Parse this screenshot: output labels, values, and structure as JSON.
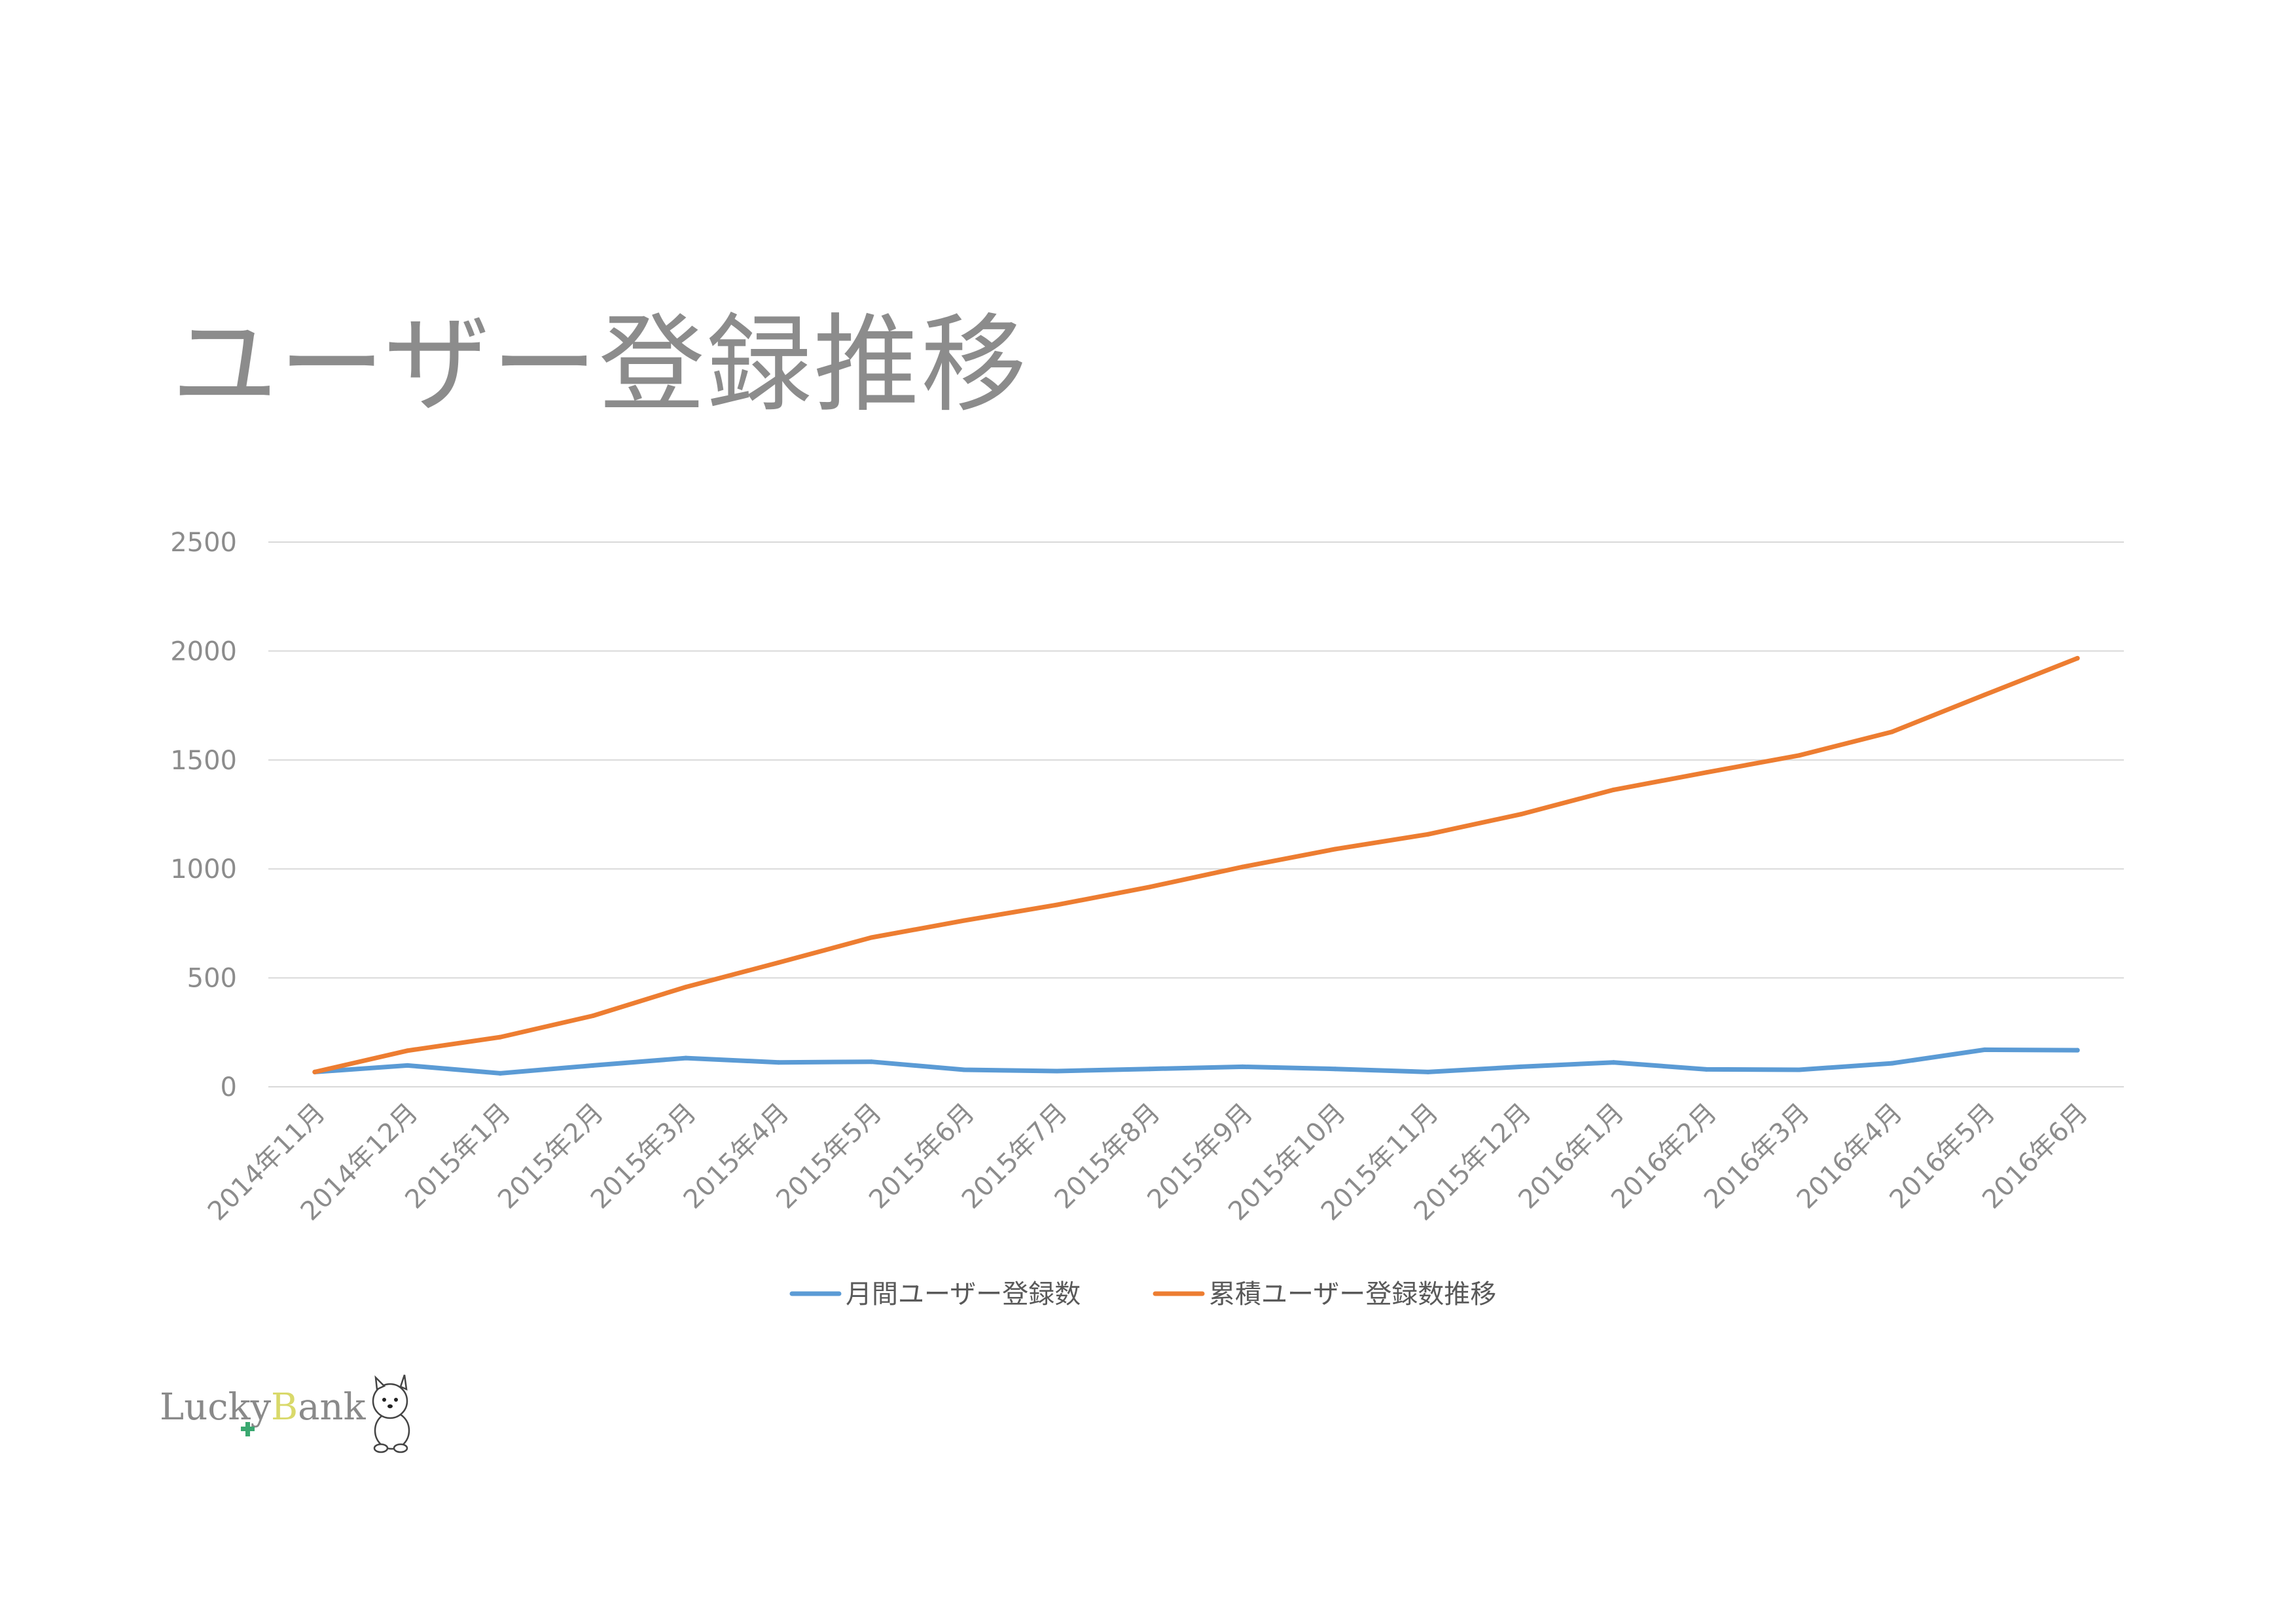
{
  "title": "ユーザー登録推移",
  "logo": {
    "text_lucky": "Lucky",
    "text_bank": "Bank",
    "colors": {
      "text": "#8a8a8a",
      "b": "#d9d96a",
      "cross": "#3aa870"
    }
  },
  "chart_data": {
    "type": "line",
    "title": "ユーザー登録推移",
    "xlabel": "",
    "ylabel": "",
    "ylim": [
      0,
      2500
    ],
    "yticks": [
      0,
      500,
      1000,
      1500,
      2000,
      2500
    ],
    "grid": true,
    "legend": "bottom",
    "categories": [
      "2014年11月",
      "2014年12月",
      "2015年1月",
      "2015年2月",
      "2015年3月",
      "2015年4月",
      "2015年5月",
      "2015年6月",
      "2015年7月",
      "2015年8月",
      "2015年9月",
      "2015年10月",
      "2015年11月",
      "2015年12月",
      "2016年1月",
      "2016年2月",
      "2016年3月",
      "2016年4月",
      "2016年5月",
      "2016年6月"
    ],
    "series": [
      {
        "name": "月間ユーザー登録数",
        "color": "#5b9bd5",
        "values": [
          68,
          98,
          62,
          98,
          132,
          112,
          115,
          78,
          72,
          82,
          92,
          82,
          68,
          92,
          112,
          80,
          78,
          108,
          170,
          168
        ]
      },
      {
        "name": "累積ユーザー登録数推移",
        "color": "#ed7d31",
        "values": [
          68,
          166,
          228,
          326,
          458,
          570,
          685,
          763,
          835,
          917,
          1009,
          1091,
          1159,
          1251,
          1363,
          1443,
          1521,
          1629,
          1799,
          1967
        ]
      }
    ]
  }
}
